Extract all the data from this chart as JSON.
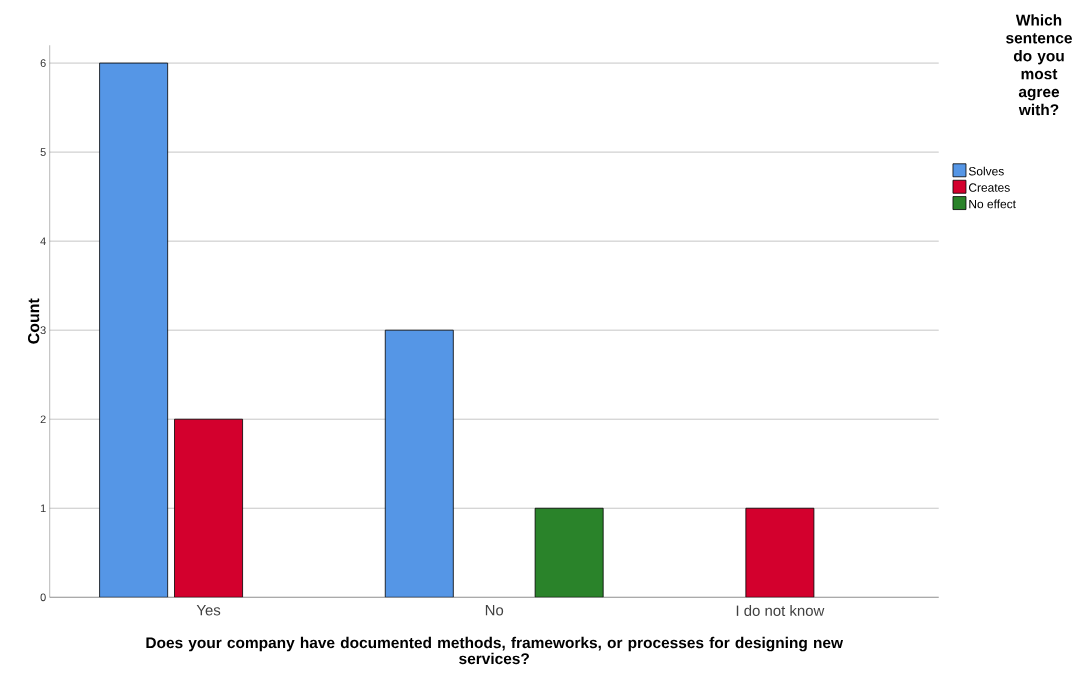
{
  "chart_data": {
    "type": "bar",
    "xlabel": "Does your company have documented methods, frameworks, or processes for designing new services?",
    "ylabel": "Count",
    "legend_title": "Which sentence do you most agree with?",
    "categories": [
      "Yes",
      "No",
      "I do not know"
    ],
    "series": [
      {
        "name": "Solves",
        "color": "#5596e6",
        "values": [
          6,
          3,
          null
        ]
      },
      {
        "name": "Creates",
        "color": "#d3002d",
        "values": [
          2,
          null,
          1
        ]
      },
      {
        "name": "No effect",
        "color": "#2a832a",
        "values": [
          null,
          1,
          null
        ]
      }
    ],
    "ylim": [
      0,
      6.2
    ],
    "yticks": [
      0,
      1,
      2,
      3,
      4,
      5,
      6
    ],
    "grid": "y",
    "legend": "top right"
  }
}
